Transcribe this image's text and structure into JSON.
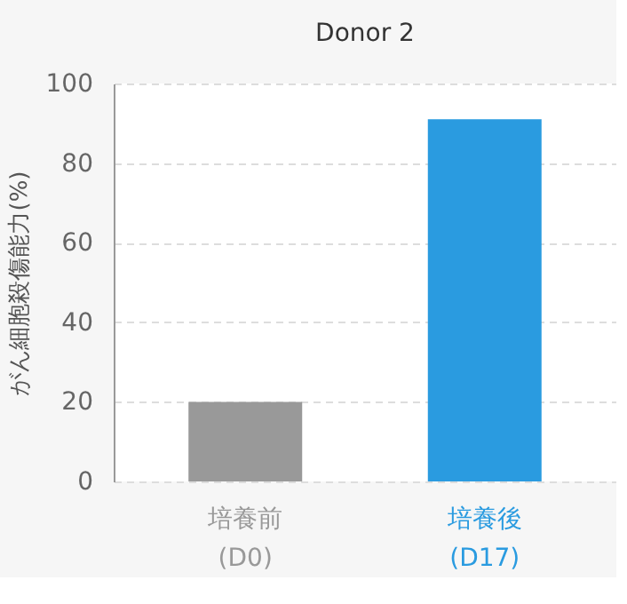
{
  "chart_data": {
    "type": "bar",
    "title": "Donor 2",
    "ylabel": "がん細胞殺傷能力(%)",
    "categories": [
      "培養前\n(D0)",
      "培養後\n(D17)"
    ],
    "values": [
      20,
      91
    ],
    "colors": [
      "#999999",
      "#2a9be0"
    ],
    "ylim": [
      0,
      100
    ],
    "yticks": [
      0,
      20,
      40,
      60,
      80,
      100
    ],
    "grid": "y",
    "legend": false
  }
}
